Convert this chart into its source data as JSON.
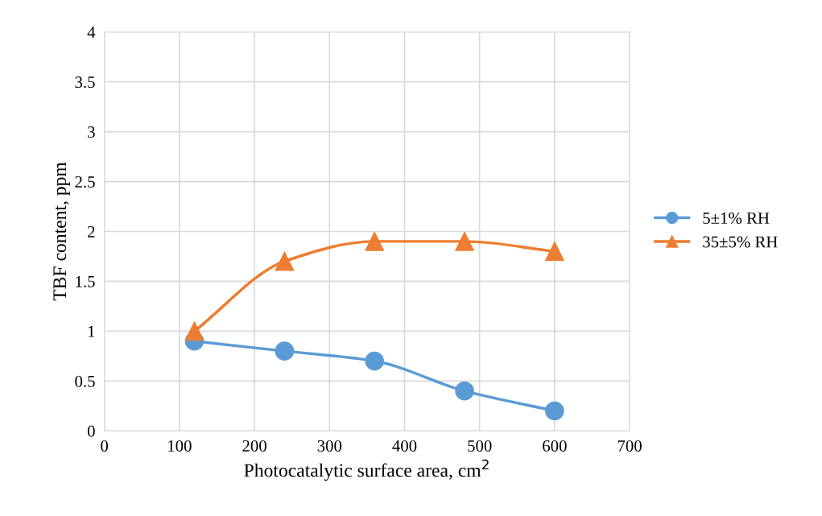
{
  "chart_data": {
    "type": "line",
    "xlabel": "Photocatalytic surface area, cm$^{2}$",
    "ylabel": "TBF content, ppm",
    "x": [
      120,
      240,
      360,
      480,
      600
    ],
    "series": [
      {
        "name": "5±1% RH",
        "color": "#5b9bd5",
        "values": [
          0.9,
          0.8,
          0.7,
          0.4,
          0.2
        ],
        "marker": "circle"
      },
      {
        "name": "35±5% RH",
        "color": "#ed7d31",
        "values": [
          1.0,
          1.7,
          1.9,
          1.9,
          1.8
        ],
        "marker": "triangle"
      }
    ],
    "xlim": [
      0,
      700
    ],
    "xticks": [
      0,
      100,
      200,
      300,
      400,
      500,
      600,
      700
    ],
    "ylim": [
      0,
      4
    ],
    "yticks": [
      0,
      0.5,
      1,
      1.5,
      2,
      2.5,
      3,
      3.5,
      4
    ],
    "grid": true,
    "legend": "right",
    "line_style": "solid"
  }
}
